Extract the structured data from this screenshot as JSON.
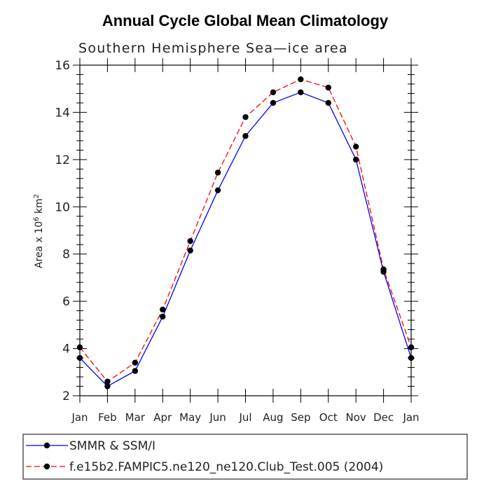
{
  "chart_data": {
    "type": "line",
    "title": "Annual Cycle Global Mean Climatology",
    "subtitle": "Southern Hemisphere Sea—ice area",
    "ylabel": "Area x 10^6 km^2",
    "ylabel_parts": {
      "base": "Area x 10",
      "exp1": "6",
      "mid": " km",
      "exp2": "2"
    },
    "categories": [
      "Jan",
      "Feb",
      "Mar",
      "Apr",
      "May",
      "Jun",
      "Jul",
      "Aug",
      "Sep",
      "Oct",
      "Nov",
      "Dec",
      "Jan"
    ],
    "ylim": [
      2,
      16
    ],
    "yticks": [
      2,
      4,
      6,
      8,
      10,
      12,
      14,
      16
    ],
    "grid": false,
    "legend_position": "bottom",
    "series": [
      {
        "name": "SMMR & SSM/I",
        "color": "#0000ff",
        "dash": "solid",
        "marker": "circle",
        "values": [
          3.6,
          2.4,
          3.05,
          5.35,
          8.15,
          10.7,
          13.0,
          14.4,
          14.85,
          14.4,
          12.0,
          7.25,
          3.6
        ]
      },
      {
        "name": "f.e15b2.FAMPIC5.ne120_ne120.Club_Test.005 (2004)",
        "color": "#ff0000",
        "dash": "dashed",
        "marker": "circle",
        "values": [
          4.05,
          2.6,
          3.4,
          5.65,
          8.55,
          11.45,
          13.8,
          14.85,
          15.4,
          15.05,
          12.55,
          7.35,
          4.05
        ]
      }
    ]
  }
}
